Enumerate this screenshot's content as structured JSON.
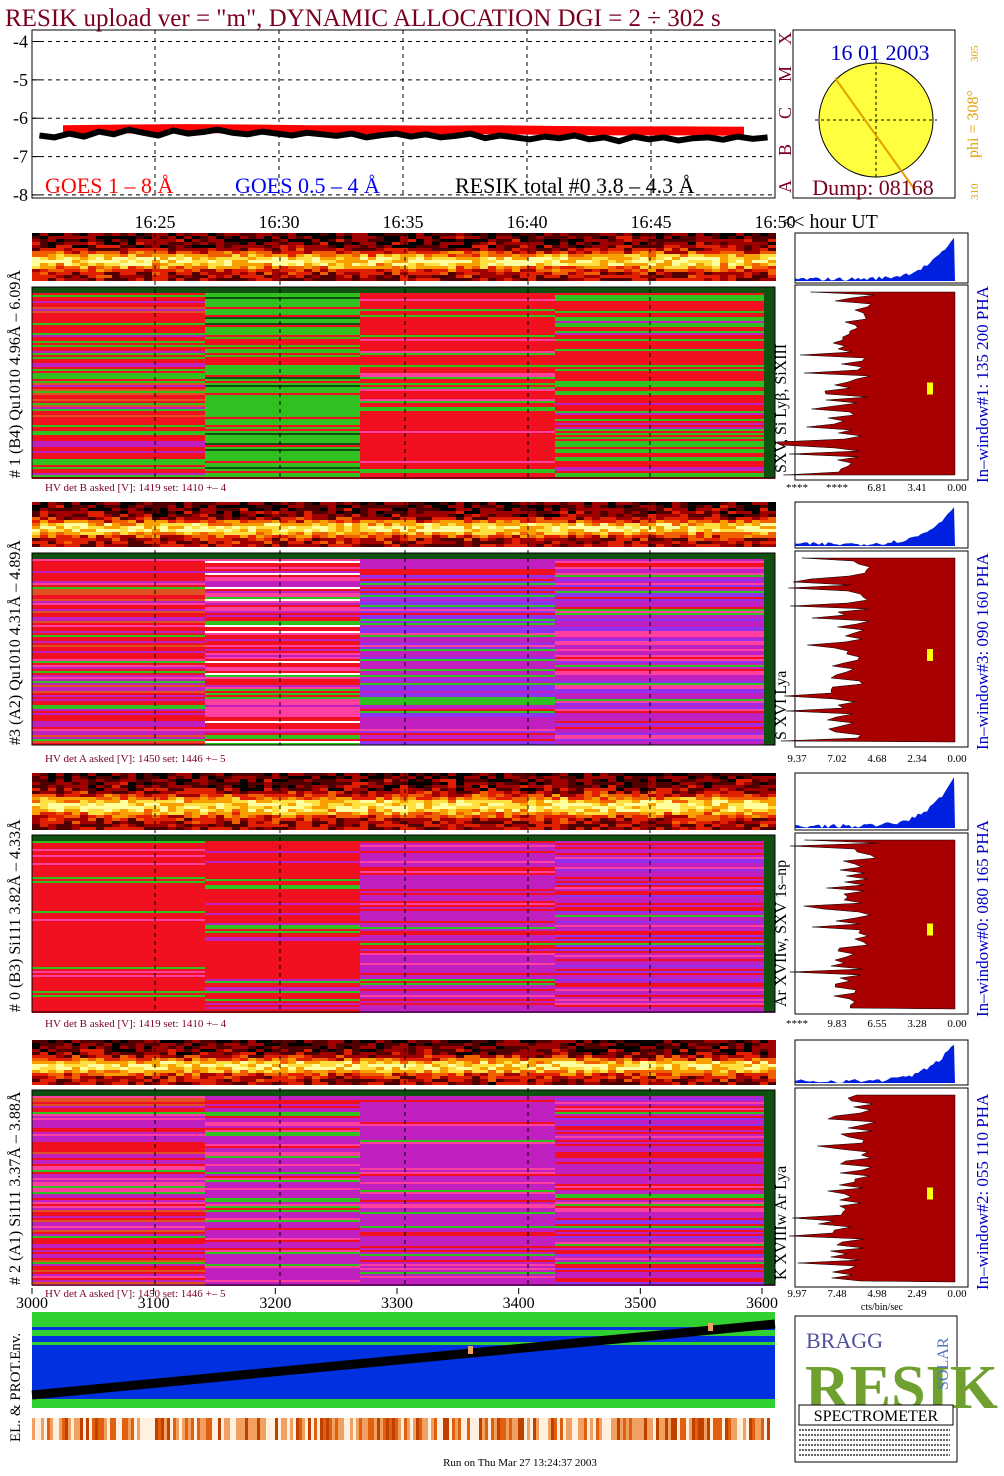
{
  "header": {
    "title": "RESIK upload ver = \"m\", DYNAMIC ALLOCATION  DGI =   2 ÷ 302 s"
  },
  "chart_data": {
    "type": "line",
    "ylim": [
      -8.08,
      -3.7
    ],
    "yticks": [
      -4,
      -5,
      -6,
      -7,
      -8
    ],
    "grid": true,
    "time_labels": [
      "16:25",
      "16:30",
      "16:35",
      "16:40",
      "16:45",
      "16:50"
    ],
    "x_axis_label": "<< hour UT",
    "series": [
      {
        "name": "GOES 1 – 8 Å",
        "color": "#ff0000",
        "values": [
          -6.3,
          -6.28,
          -6.27,
          -6.28,
          -6.3,
          -6.3,
          -6.31,
          -6.3,
          -6.32,
          -6.33,
          -6.33,
          -6.34
        ]
      },
      {
        "name": "GOES 0.5 – 4 Å",
        "color": "#0000ff",
        "values": [
          null,
          null,
          null,
          null,
          null,
          null,
          null,
          null,
          null,
          null,
          null,
          null
        ]
      },
      {
        "name": "RESIK total #0  3.8 – 4.3 Å",
        "color": "#000000",
        "values": [
          -6.45,
          -6.5,
          -6.4,
          -6.48,
          -6.35,
          -6.42,
          -6.3,
          -6.38,
          -6.45,
          -6.32,
          -6.4,
          -6.36,
          -6.3,
          -6.38,
          -6.42,
          -6.35,
          -6.4,
          -6.45,
          -6.38,
          -6.42,
          -6.46,
          -6.4,
          -6.5,
          -6.44,
          -6.4,
          -6.48,
          -6.42,
          -6.5,
          -6.46,
          -6.4,
          -6.52,
          -6.45,
          -6.5,
          -6.55,
          -6.48,
          -6.52,
          -6.45,
          -6.55,
          -6.5,
          -6.6,
          -6.48,
          -6.55,
          -6.5,
          -6.58,
          -6.52,
          -6.5,
          -6.56,
          -6.48,
          -6.54,
          -6.5
        ]
      }
    ]
  },
  "sun": {
    "date": "16 01 2003",
    "dump": "Dump: 08168",
    "phi": "phi = 308°",
    "phi_small": "305",
    "bottom": "310",
    "classes": [
      "X",
      "M",
      "C",
      "B",
      "A"
    ]
  },
  "panels": [
    {
      "label": "# 1 (B4) Qu1010 4.96Å – 6.09Å",
      "lines": "SXV, Si Lyβ, SiXIII",
      "window": "In–window#1:  135 200 PHA",
      "hv": "HV det B asked [V]:  1419  set:  1410  +–   4",
      "hist_ticks": [
        "****",
        "****",
        "6.81",
        "3.41",
        "0.00"
      ]
    },
    {
      "label": "#3 (A2) Qu1010  4.31Å – 4.89Å",
      "lines": "S XVI Lya",
      "window": "In–window#3:  090 160 PHA",
      "hv": "HV det A asked [V]:  1450  set:  1446  +–   5",
      "hist_ticks": [
        "9.37",
        "7.02",
        "4.68",
        "2.34",
        "0.00"
      ]
    },
    {
      "label": "# 0 (B3) Si111  3.82Å – 4.33Å",
      "lines": "Ar XVIIw, SXV 1s–np",
      "window": "In–window#0:  080 165 PHA",
      "hv": "HV det B asked [V]:  1419  set:  1410  +–   4",
      "hist_ticks": [
        "****",
        "9.83",
        "6.55",
        "3.28",
        "0.00"
      ]
    },
    {
      "label": "# 2 (A1) Si111  3.37Å – 3.88Å",
      "lines": "K XVIIIw  Ar Lya",
      "window": "In–window#2:  055 110 PHA",
      "hv": "HV det A asked [V]:  1450  set:  1446  +–   5",
      "hist_ticks": [
        "9.97",
        "7.48",
        "4.98",
        "2.49",
        "0.00"
      ]
    }
  ],
  "hist_unit": "cts/bin/sec",
  "pha_axis": {
    "lim": [
      3000,
      3600
    ],
    "ticks": [
      3000,
      3100,
      3200,
      3300,
      3400,
      3500,
      3600
    ]
  },
  "env": {
    "label": "EL. & PROT.Env."
  },
  "logo": {
    "bragg": "BRAGG",
    "resik": "RESIK",
    "solar": "SOLAR",
    "name": "SPECTROMETER"
  },
  "footer": "Run on Thu Mar 27 13:24:37 2003"
}
